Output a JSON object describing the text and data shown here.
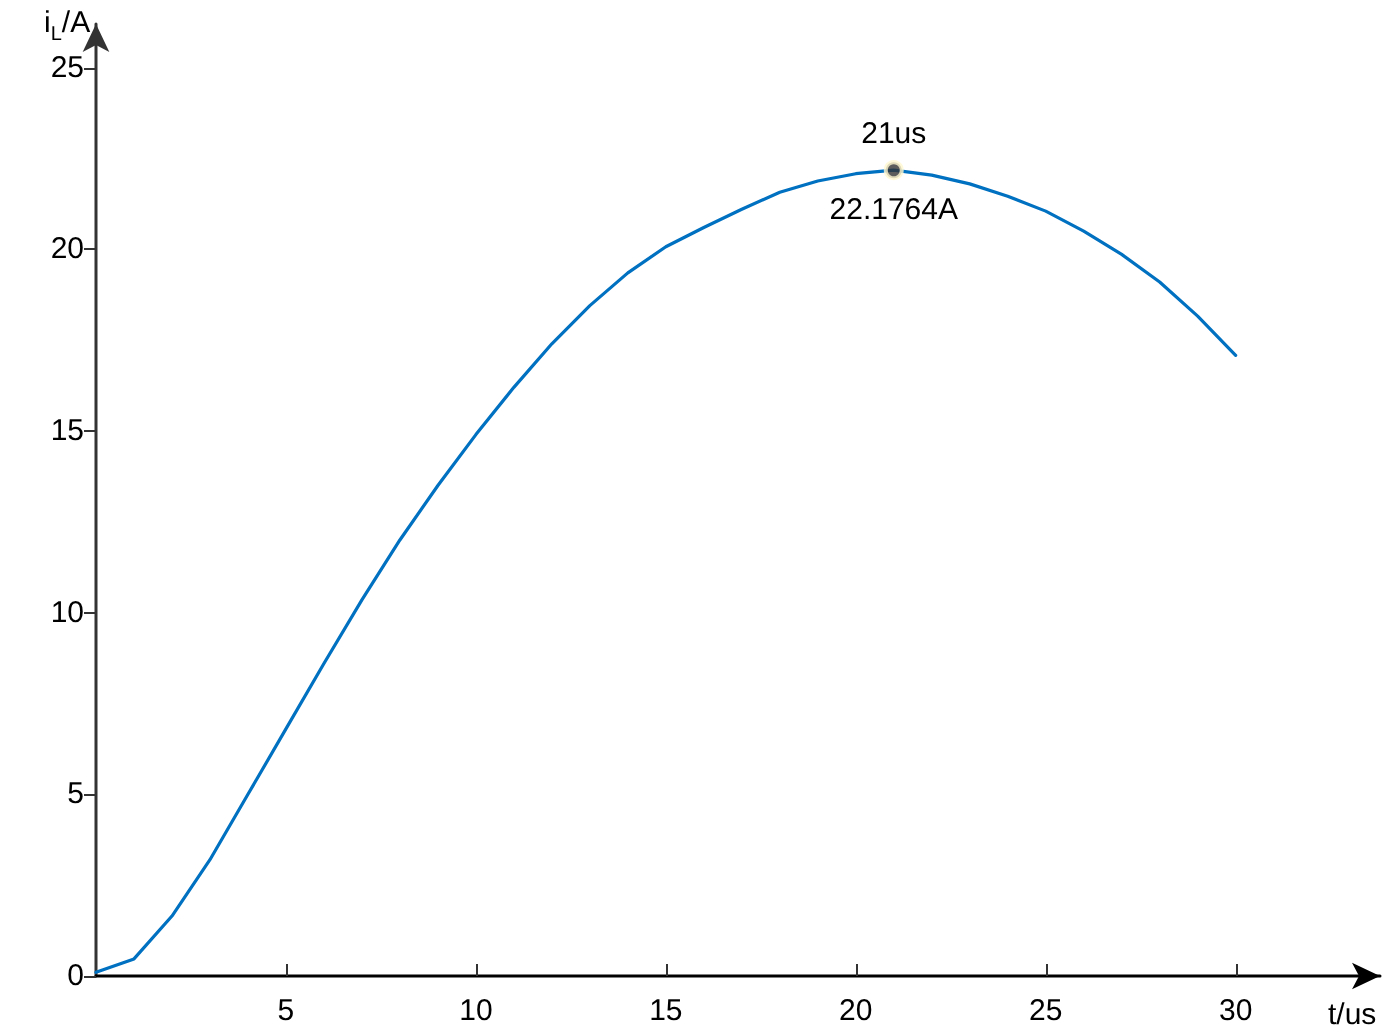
{
  "chart_data": {
    "type": "line",
    "xlabel": "t/us",
    "ylabel": "i$_{L}$/A",
    "xlim": [
      0,
      33.8
    ],
    "ylim": [
      0,
      26.2
    ],
    "xticks": [
      5,
      10,
      15,
      20,
      25,
      30
    ],
    "yticks": [
      0,
      5,
      10,
      15,
      20,
      25
    ],
    "grid": false,
    "marker": "none",
    "line_style": "solid",
    "series": [
      {
        "color": "#0070c0",
        "x": [
          0,
          1,
          2,
          3,
          4,
          5,
          6,
          7,
          8,
          9,
          10,
          11,
          12,
          13,
          14,
          15,
          16,
          17,
          18,
          19,
          20,
          21,
          22,
          23,
          24,
          25,
          26,
          27,
          28,
          29,
          30
        ],
        "values": [
          0.1,
          0.47,
          1.65,
          3.2,
          5.0,
          6.8,
          8.6,
          10.35,
          12.0,
          13.5,
          14.9,
          16.2,
          17.4,
          18.45,
          19.35,
          20.07,
          20.6,
          21.1,
          21.57,
          21.88,
          22.08,
          22.1764,
          22.04,
          21.8,
          21.46,
          21.05,
          20.5,
          19.86,
          19.1,
          18.16,
          17.08
        ]
      },
      {
        "type": "scatter",
        "color": "#333333",
        "marker": "circle",
        "x": [
          21
        ],
        "values": [
          22.1764
        ]
      }
    ],
    "annotations": [
      {
        "text": "21us",
        "x": 21,
        "y": 22.1764
      },
      {
        "text": "22.1764A",
        "x": 21,
        "y": 22.1764
      }
    ]
  }
}
